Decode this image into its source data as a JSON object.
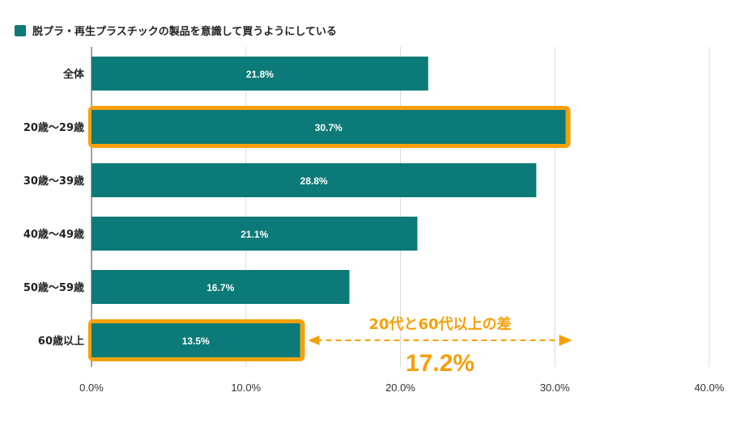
{
  "chart_data": {
    "type": "bar",
    "orientation": "horizontal",
    "legend": {
      "label": "脱プラ・再生プラスチックの製品を意識して買うようにしている",
      "position": "top-left"
    },
    "categories": [
      "全体",
      "20歳〜29歳",
      "30歳〜39歳",
      "40歳〜49歳",
      "50歳〜59歳",
      "60歳以上"
    ],
    "values": [
      21.8,
      30.7,
      28.8,
      21.1,
      16.7,
      13.5
    ],
    "data_labels": [
      "21.8%",
      "30.7%",
      "28.8%",
      "21.1%",
      "16.7%",
      "13.5%"
    ],
    "xlim": [
      0,
      40
    ],
    "xticks": [
      0,
      10,
      20,
      30,
      40
    ],
    "xtick_labels": [
      "0.0%",
      "10.0%",
      "20.0%",
      "30.0%",
      "40.0%"
    ],
    "grid": true,
    "highlighted": [
      "20歳〜29歳",
      "60歳以上"
    ],
    "annotation": {
      "text": "20代と60代以上の差",
      "value": "17.2%"
    },
    "colors": {
      "bar": "#0b7a78",
      "highlight": "#f5a00a",
      "annotation": "#f5a00a",
      "grid": "#d9d9d9"
    }
  }
}
